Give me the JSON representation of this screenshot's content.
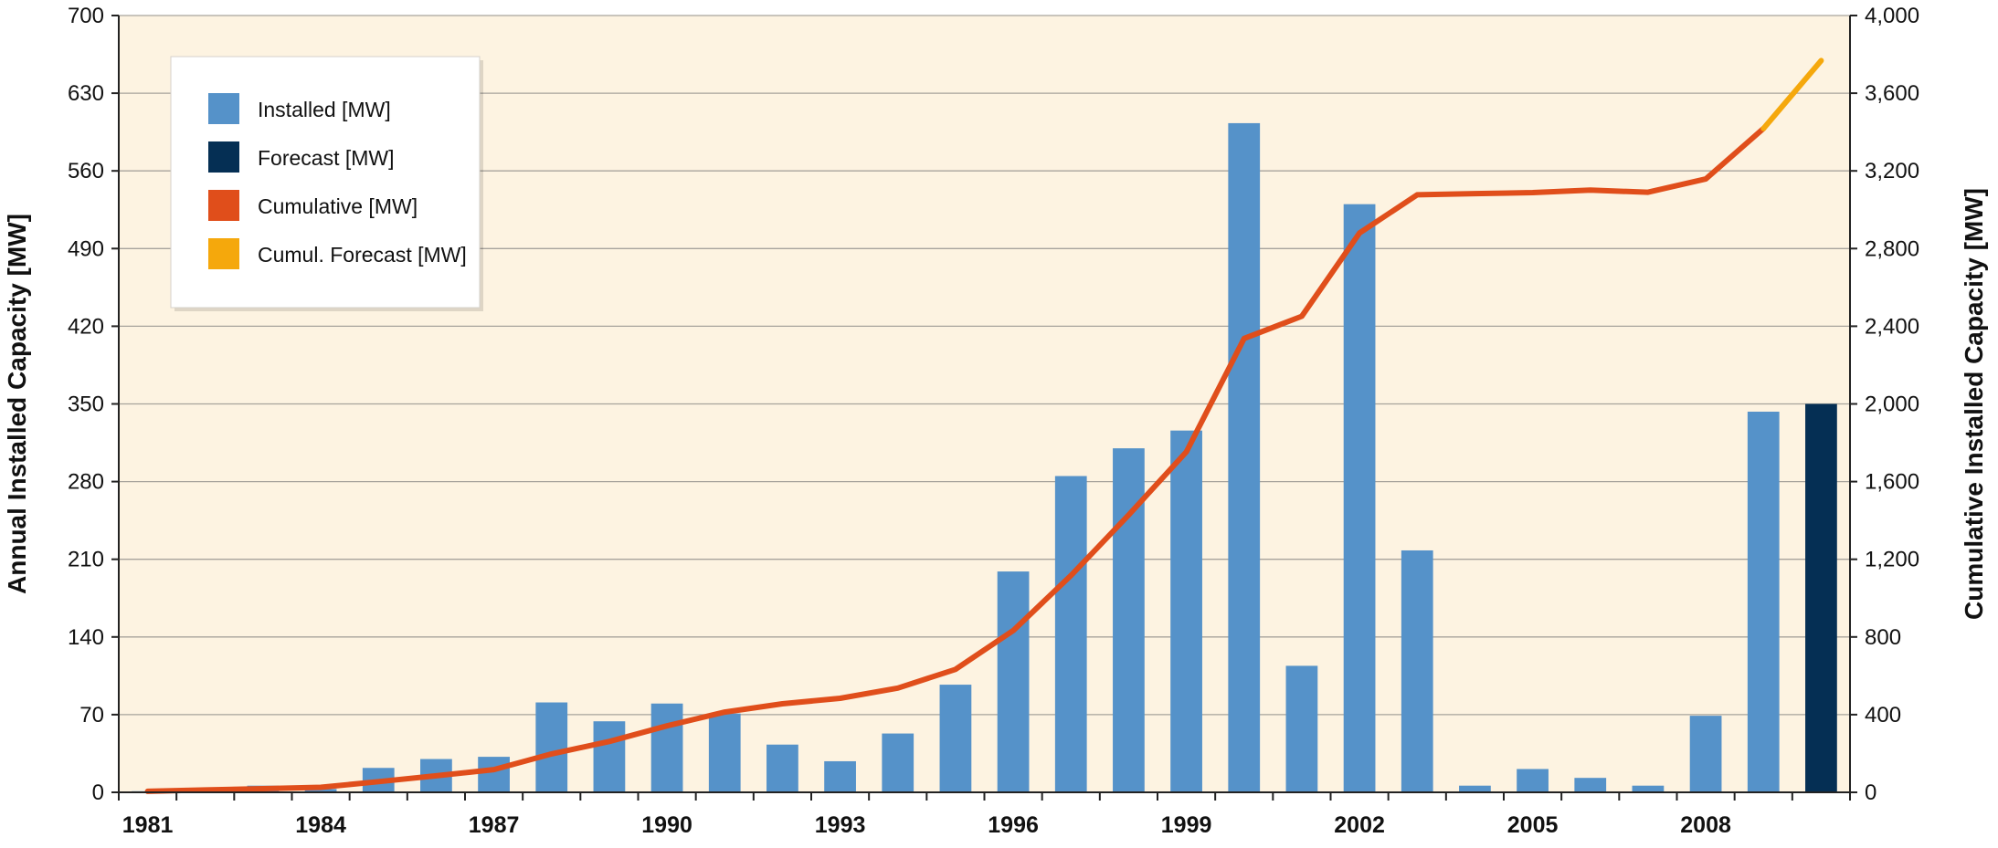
{
  "chart_data": {
    "type": "bar",
    "y_left_label": "Annual Installed Capacity [MW]",
    "y_right_label": "Cumulative Installed Capacity [MW]",
    "y_left_lim": [
      0,
      700
    ],
    "y_right_lim": [
      0,
      4000
    ],
    "y_left_ticks": [
      "0",
      "70",
      "140",
      "210",
      "280",
      "350",
      "420",
      "490",
      "560",
      "630",
      "700"
    ],
    "y_right_ticks": [
      "0",
      "400",
      "800",
      "1,200",
      "1,600",
      "2,000",
      "2,400",
      "2,800",
      "3,200",
      "3,600",
      "4,000"
    ],
    "years": [
      1981,
      1982,
      1983,
      1984,
      1985,
      1986,
      1987,
      1988,
      1989,
      1990,
      1991,
      1992,
      1993,
      1994,
      1995,
      1996,
      1997,
      1998,
      1999,
      2000,
      2001,
      2002,
      2003,
      2004,
      2005,
      2006,
      2007,
      2008,
      2009,
      2010
    ],
    "x_tick_labels": [
      "1981",
      "1984",
      "1987",
      "1990",
      "1993",
      "1996",
      "1999",
      "2002",
      "2005",
      "2008"
    ],
    "grid": true,
    "background_color": "#fdf3e1",
    "legend": {
      "placement": "top-left",
      "items": [
        {
          "label": "Installed [MW]",
          "color": "#5592c9"
        },
        {
          "label": "Forecast [MW]",
          "color": "#052f54"
        },
        {
          "label": "Cumulative [MW]",
          "color": "#e04e1b"
        },
        {
          "label": "Cumul. Forecast [MW]",
          "color": "#f5a80c"
        }
      ]
    },
    "series": [
      {
        "name": "Installed [MW]",
        "kind": "bar",
        "axis": "left",
        "color": "#5592c9",
        "values": [
          1,
          2,
          6,
          3,
          22,
          30,
          32,
          81,
          64,
          80,
          71,
          43,
          28,
          53,
          97,
          199,
          285,
          310,
          326,
          603,
          114,
          530,
          218,
          6,
          21,
          13,
          6,
          69,
          343,
          null
        ]
      },
      {
        "name": "Forecast [MW]",
        "kind": "bar",
        "axis": "left",
        "color": "#052f54",
        "values": [
          null,
          null,
          null,
          null,
          null,
          null,
          null,
          null,
          null,
          null,
          null,
          null,
          null,
          null,
          null,
          null,
          null,
          null,
          null,
          null,
          null,
          null,
          null,
          null,
          null,
          null,
          null,
          null,
          null,
          350
        ]
      },
      {
        "name": "Cumulative [MW]",
        "kind": "line",
        "axis": "right",
        "color": "#e04e1b",
        "values": [
          5,
          12,
          19,
          26,
          55,
          85,
          117,
          198,
          262,
          342,
          413,
          456,
          484,
          537,
          633,
          833,
          1117,
          1428,
          1753,
          2337,
          2451,
          2880,
          3077,
          3083,
          3088,
          3101,
          3090,
          3158,
          3418,
          null
        ]
      },
      {
        "name": "Cumul. Forecast [MW]",
        "kind": "line",
        "axis": "right",
        "color": "#f5a80c",
        "values": [
          null,
          null,
          null,
          null,
          null,
          null,
          null,
          null,
          null,
          null,
          null,
          null,
          null,
          null,
          null,
          null,
          null,
          null,
          null,
          null,
          null,
          null,
          null,
          null,
          null,
          null,
          null,
          null,
          3418,
          3768
        ]
      }
    ]
  }
}
